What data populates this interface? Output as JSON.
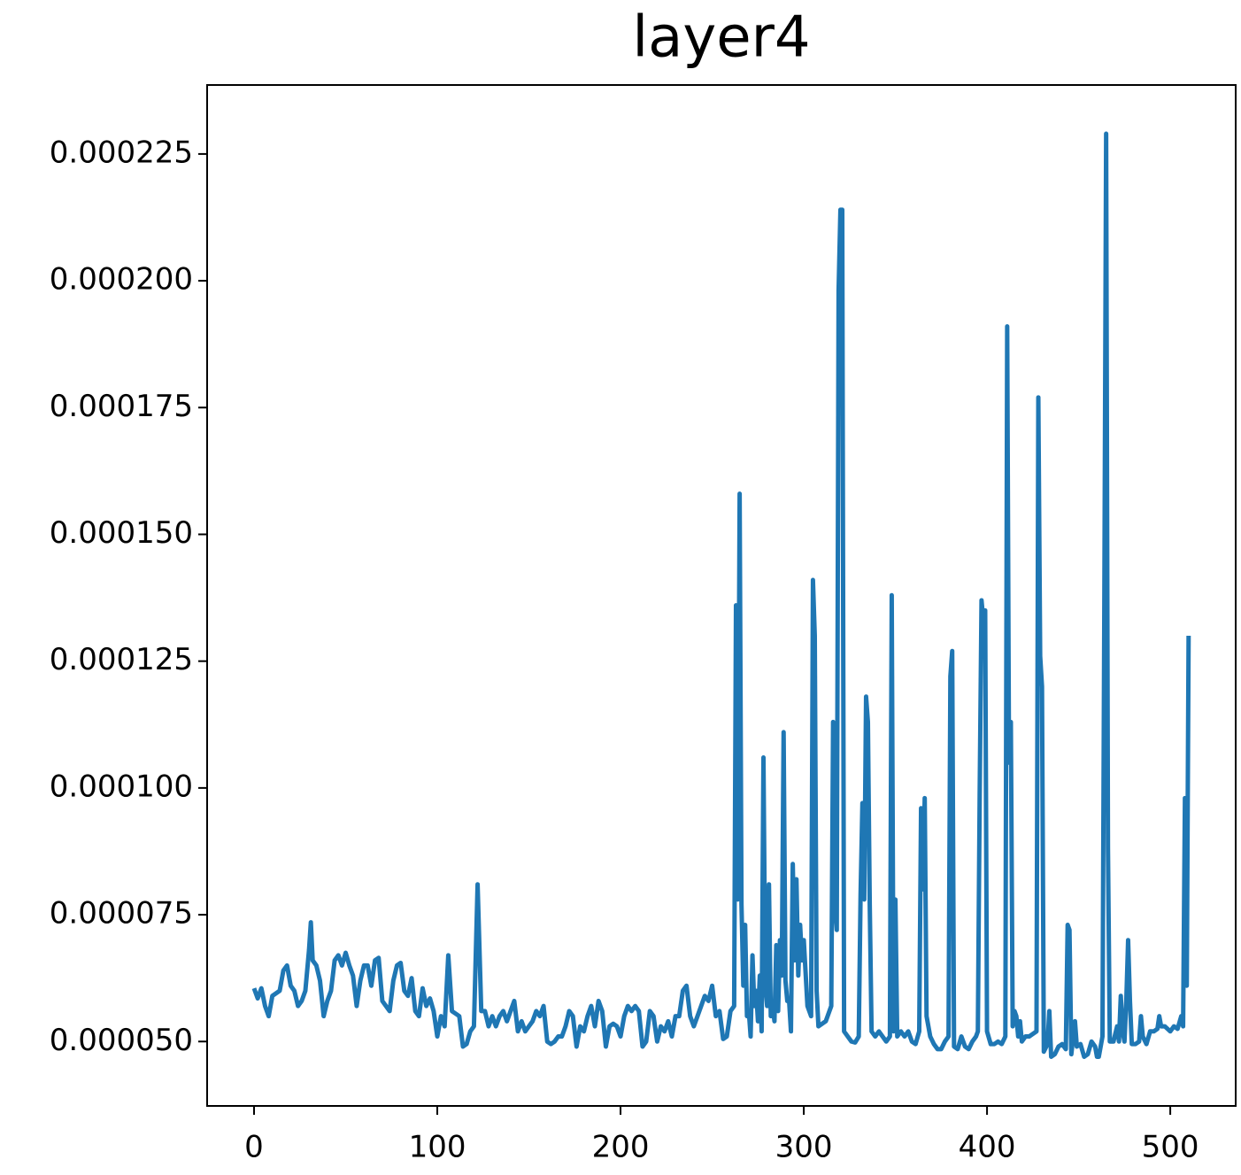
{
  "chart_data": {
    "type": "line",
    "title": "layer4",
    "x": [
      0,
      2,
      4,
      6,
      8,
      10,
      12,
      14,
      16,
      18,
      20,
      22,
      24,
      26,
      28,
      30,
      31,
      32,
      34,
      36,
      38,
      40,
      42,
      44,
      46,
      48,
      50,
      52,
      54,
      56,
      58,
      60,
      62,
      64,
      66,
      68,
      70,
      72,
      74,
      76,
      78,
      80,
      82,
      84,
      86,
      88,
      90,
      92,
      94,
      96,
      98,
      100,
      102,
      104,
      106,
      108,
      110,
      112,
      114,
      116,
      118,
      120,
      122,
      124,
      126,
      128,
      130,
      132,
      134,
      136,
      138,
      140,
      142,
      144,
      146,
      148,
      150,
      152,
      154,
      156,
      158,
      160,
      162,
      164,
      166,
      168,
      170,
      172,
      174,
      176,
      178,
      180,
      182,
      184,
      186,
      188,
      190,
      192,
      194,
      196,
      198,
      200,
      202,
      204,
      206,
      208,
      210,
      212,
      214,
      216,
      218,
      220,
      222,
      224,
      226,
      228,
      230,
      232,
      234,
      236,
      238,
      240,
      242,
      244,
      246,
      248,
      250,
      252,
      254,
      256,
      258,
      260,
      262,
      263,
      264,
      265,
      266,
      267,
      268,
      269,
      270,
      271,
      272,
      273,
      274,
      275,
      276,
      277,
      278,
      279,
      280,
      281,
      282,
      283,
      284,
      285,
      286,
      287,
      288,
      289,
      290,
      291,
      292,
      293,
      294,
      295,
      296,
      297,
      298,
      299,
      300,
      302,
      304,
      305,
      306,
      307,
      308,
      310,
      312,
      314,
      315,
      316,
      317,
      318,
      319,
      320,
      321,
      322,
      324,
      326,
      328,
      330,
      331,
      332,
      333,
      334,
      335,
      336,
      337,
      339,
      341,
      343,
      345,
      347,
      348,
      349,
      350,
      351,
      353,
      355,
      357,
      359,
      361,
      363,
      364,
      365,
      366,
      367,
      369,
      371,
      373,
      375,
      377,
      379,
      380,
      381,
      382,
      384,
      386,
      388,
      390,
      392,
      394,
      395,
      396,
      397,
      398,
      399,
      400,
      402,
      404,
      406,
      408,
      410,
      411,
      412,
      413,
      414,
      415,
      416,
      417,
      418,
      419,
      421,
      423,
      427,
      428,
      429,
      430,
      431,
      433,
      434,
      435,
      437,
      439,
      441,
      443,
      444,
      445,
      446,
      448,
      449,
      451,
      453,
      455,
      457,
      459,
      460,
      461,
      463,
      464,
      465,
      466,
      467,
      469,
      471,
      472,
      473,
      474,
      475,
      476,
      477,
      478,
      479,
      481,
      483,
      484,
      485,
      487,
      489,
      491,
      493,
      494,
      495,
      497,
      500,
      502,
      504,
      506,
      507,
      508,
      509,
      510
    ],
    "series": [
      {
        "color": "#1f77b4",
        "values": [
          6.05e-05,
          5.85e-05,
          6.05e-05,
          5.7e-05,
          5.5e-05,
          5.9e-05,
          5.95e-05,
          6e-05,
          6.4e-05,
          6.5e-05,
          6.1e-05,
          6e-05,
          5.7e-05,
          5.8e-05,
          6e-05,
          6.8e-05,
          7.35e-05,
          6.6e-05,
          6.5e-05,
          6.2e-05,
          5.5e-05,
          5.8e-05,
          6e-05,
          6.6e-05,
          6.7e-05,
          6.5e-05,
          6.75e-05,
          6.5e-05,
          6.3e-05,
          5.7e-05,
          6.2e-05,
          6.5e-05,
          6.5e-05,
          6.1e-05,
          6.6e-05,
          6.65e-05,
          5.8e-05,
          5.7e-05,
          5.6e-05,
          6.2e-05,
          6.5e-05,
          6.55e-05,
          6e-05,
          5.9e-05,
          6.25e-05,
          5.6e-05,
          5.5e-05,
          6.05e-05,
          5.7e-05,
          5.85e-05,
          5.6e-05,
          5.1e-05,
          5.5e-05,
          5.3e-05,
          6.7e-05,
          5.6e-05,
          5.55e-05,
          5.5e-05,
          4.9e-05,
          4.95e-05,
          5.2e-05,
          5.3e-05,
          8.1e-05,
          5.6e-05,
          5.6e-05,
          5.3e-05,
          5.5e-05,
          5.3e-05,
          5.5e-05,
          5.6e-05,
          5.4e-05,
          5.6e-05,
          5.8e-05,
          5.2e-05,
          5.4e-05,
          5.2e-05,
          5.3e-05,
          5.4e-05,
          5.6e-05,
          5.5e-05,
          5.7e-05,
          5e-05,
          4.95e-05,
          5e-05,
          5.1e-05,
          5.1e-05,
          5.3e-05,
          5.6e-05,
          5.5e-05,
          4.9e-05,
          5.3e-05,
          5.2e-05,
          5.5e-05,
          5.7e-05,
          5.3e-05,
          5.8e-05,
          5.6e-05,
          4.9e-05,
          5.3e-05,
          5.35e-05,
          5.3e-05,
          5.1e-05,
          5.5e-05,
          5.7e-05,
          5.6e-05,
          5.7e-05,
          5.6e-05,
          4.9e-05,
          5e-05,
          5.6e-05,
          5.5e-05,
          5e-05,
          5.3e-05,
          5.2e-05,
          5.4e-05,
          5.1e-05,
          5.5e-05,
          5.5e-05,
          6e-05,
          6.1e-05,
          5.5e-05,
          5.3e-05,
          5.5e-05,
          5.7e-05,
          5.9e-05,
          5.8e-05,
          6.1e-05,
          5.5e-05,
          5.6e-05,
          5.05e-05,
          5.1e-05,
          5.6e-05,
          5.7e-05,
          0.000136,
          7.8e-05,
          0.000158,
          7.7e-05,
          6.1e-05,
          7.3e-05,
          5.5e-05,
          5.6e-05,
          5.1e-05,
          6.7e-05,
          5.7e-05,
          6e-05,
          5.4e-05,
          6.3e-05,
          5.2e-05,
          0.000106,
          6.1e-05,
          5.7e-05,
          8.1e-05,
          5.5e-05,
          5.7e-05,
          5.4e-05,
          6.9e-05,
          5.6e-05,
          7e-05,
          6.3e-05,
          0.000111,
          6.2e-05,
          5.8e-05,
          5.8e-05,
          5.2e-05,
          8.5e-05,
          6.6e-05,
          8.2e-05,
          6.3e-05,
          7.3e-05,
          6.6e-05,
          7e-05,
          5.7e-05,
          5.5e-05,
          0.000141,
          0.00013,
          6e-05,
          5.3e-05,
          5.35e-05,
          5.4e-05,
          5.6e-05,
          5.7e-05,
          0.000113,
          7.7e-05,
          7.2e-05,
          0.000198,
          0.000214,
          0.000214,
          5.2e-05,
          5.1e-05,
          5e-05,
          4.98e-05,
          5.1e-05,
          7.9e-05,
          9.7e-05,
          7.8e-05,
          0.000118,
          0.000113,
          7.7e-05,
          5.2e-05,
          5.1e-05,
          5.2e-05,
          5.1e-05,
          5e-05,
          5.1e-05,
          0.000138,
          5.2e-05,
          7.8e-05,
          5.1e-05,
          5.2e-05,
          5.1e-05,
          5.2e-05,
          5e-05,
          4.95e-05,
          5.2e-05,
          9.6e-05,
          8e-05,
          9.8e-05,
          5.5e-05,
          5.1e-05,
          4.95e-05,
          4.85e-05,
          4.85e-05,
          5e-05,
          5.1e-05,
          0.000122,
          0.000127,
          4.9e-05,
          4.85e-05,
          5.1e-05,
          4.9e-05,
          4.85e-05,
          5e-05,
          5.1e-05,
          5.2e-05,
          9.9e-05,
          0.000137,
          0.000133,
          0.000135,
          5.2e-05,
          4.95e-05,
          4.95e-05,
          5e-05,
          4.95e-05,
          5.1e-05,
          0.000191,
          0.000105,
          0.000113,
          5.3e-05,
          5.6e-05,
          5.5e-05,
          5.1e-05,
          5.4e-05,
          5e-05,
          5.1e-05,
          5.1e-05,
          5.2e-05,
          0.000177,
          0.000126,
          0.00012,
          4.8e-05,
          4.95e-05,
          5.6e-05,
          4.7e-05,
          4.75e-05,
          4.9e-05,
          4.95e-05,
          4.85e-05,
          7.3e-05,
          7.2e-05,
          4.75e-05,
          5.4e-05,
          4.9e-05,
          4.95e-05,
          4.7e-05,
          4.75e-05,
          5e-05,
          4.9e-05,
          4.7e-05,
          4.7e-05,
          5.1e-05,
          0.000135,
          0.000229,
          8.8e-05,
          5e-05,
          5e-05,
          5.3e-05,
          5e-05,
          5.9e-05,
          5.2e-05,
          5e-05,
          5.8e-05,
          7e-05,
          5.8e-05,
          4.95e-05,
          4.95e-05,
          5e-05,
          5.5e-05,
          5.1e-05,
          4.95e-05,
          5.2e-05,
          5.2e-05,
          5.25e-05,
          5.5e-05,
          5.3e-05,
          5.3e-05,
          5.2e-05,
          5.3e-05,
          5.25e-05,
          5.5e-05,
          5.3e-05,
          9.8e-05,
          6.1e-05,
          0.00013
        ]
      }
    ],
    "xlim": [
      -25.6,
      535.7
    ],
    "xticks": [
      0,
      100,
      200,
      300,
      400,
      500
    ],
    "ylim": [
      3.73e-05,
      0.0002386
    ],
    "yticks": [
      {
        "value": 5e-05,
        "label": "0.000050"
      },
      {
        "value": 7.5e-05,
        "label": "0.000075"
      },
      {
        "value": 0.0001,
        "label": "0.000100"
      },
      {
        "value": 0.000125,
        "label": "0.000125"
      },
      {
        "value": 0.00015,
        "label": "0.000150"
      },
      {
        "value": 0.000175,
        "label": "0.000175"
      },
      {
        "value": 0.0002,
        "label": "0.000200"
      },
      {
        "value": 0.000225,
        "label": "0.000225"
      }
    ],
    "grid": false
  }
}
